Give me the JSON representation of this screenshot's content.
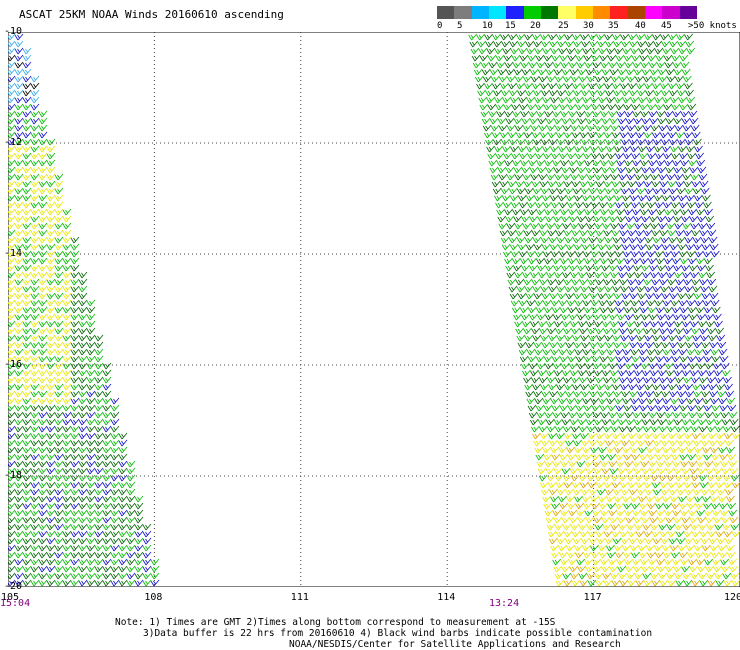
{
  "title": "ASCAT 25KM NOAA Winds 20160610 ascending",
  "legend": {
    "colors": [
      "#555555",
      "#7d7d7d",
      "#00b4ff",
      "#00e6ff",
      "#2020ff",
      "#00cc00",
      "#007700",
      "#ffff66",
      "#ffcc00",
      "#ff8c00",
      "#ff2020",
      "#aa4400",
      "#ff00ff",
      "#cc00cc",
      "#660099"
    ],
    "labels": [
      "0",
      "5",
      "10",
      "15",
      "20",
      "25",
      "30",
      "35",
      "40",
      "45",
      ">50 knots"
    ]
  },
  "map": {
    "lat_labels": [
      "-10",
      "-12",
      "-14",
      "-16",
      "-18",
      "-20"
    ],
    "lon_labels": [
      "105",
      "108",
      "111",
      "114",
      "117",
      "120"
    ]
  },
  "times": {
    "left": "15:04",
    "right": "13:24"
  },
  "notes": [
    "Note: 1) Times are GMT 2)Times along bottom correspond to measurement at -15S",
    "3)Data buffer is 22 hrs from 20160610 4) Black wind barbs indicate possible contamination",
    "NOAA/NESDIS/Center for Satellite Applications and Research"
  ]
}
